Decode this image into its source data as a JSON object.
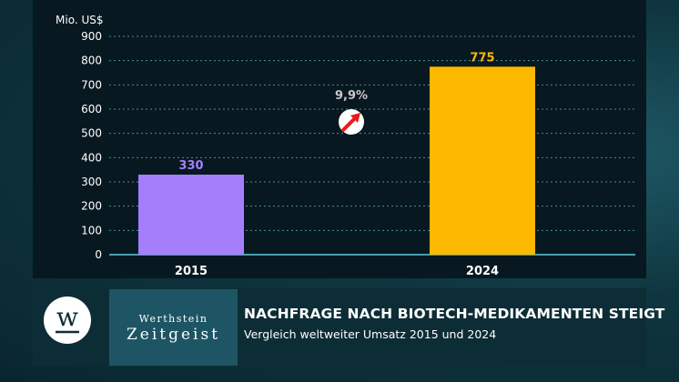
{
  "chart_data": {
    "type": "bar",
    "ylabel": "Mio. US$",
    "ylim": [
      0,
      900
    ],
    "yticks": [
      0,
      100,
      200,
      300,
      400,
      500,
      600,
      700,
      800,
      900
    ],
    "grid": true,
    "categories": [
      "2015",
      "2024"
    ],
    "values": [
      330,
      775
    ],
    "colors": [
      "#a57ffb",
      "#fcb900"
    ],
    "annotation": {
      "text": "9,9%",
      "icon": "arrow-up-right-icon"
    }
  },
  "brand": {
    "line1": "Werthstein",
    "line2": "Zeitgeist",
    "logo_letter": "w"
  },
  "caption": {
    "title": "NACHFRAGE NACH BIOTECH-MEDIKAMENTEN STEIGT",
    "subtitle": "Vergleich weltweiter Umsatz 2015 und 2024"
  },
  "colors": {
    "axis": "#5ec9d9",
    "grid": "#4a8d99",
    "text": "#ffffff",
    "annotation_text": "#c8c8c8",
    "arrow": "#e81c1c"
  }
}
